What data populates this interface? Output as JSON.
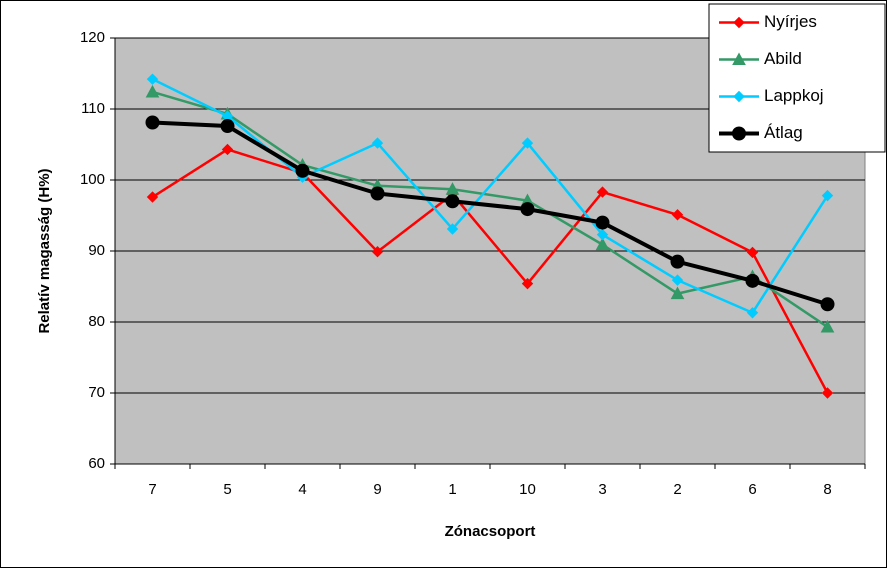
{
  "chart_data": {
    "type": "line",
    "x_label": "Zónacsoport",
    "y_label": "Relatív magasság (H%)",
    "categories": [
      "7",
      "5",
      "4",
      "9",
      "1",
      "10",
      "3",
      "2",
      "6",
      "8"
    ],
    "series": [
      {
        "name": "Nyírjes",
        "color": "#ff0000",
        "marker": "diamond",
        "line_width": 2.5,
        "values": [
          97.6,
          104.3,
          101,
          89.9,
          98,
          85.4,
          98.3,
          95.1,
          89.8,
          70
        ]
      },
      {
        "name": "Abild",
        "color": "#339966",
        "marker": "triangle",
        "line_width": 2.5,
        "values": [
          112.4,
          109.3,
          102.1,
          99.2,
          98.7,
          97.1,
          90.9,
          84,
          86.4,
          79.3
        ]
      },
      {
        "name": "Lappkoj",
        "color": "#00ccff",
        "marker": "diamond",
        "line_width": 2.5,
        "values": [
          114.2,
          109,
          100.4,
          105.2,
          93.1,
          105.2,
          92.3,
          85.9,
          81.3,
          97.8
        ]
      },
      {
        "name": "Átlag",
        "color": "#000000",
        "marker": "circle",
        "line_width": 4,
        "values": [
          108.1,
          107.6,
          101.3,
          98.1,
          97,
          95.9,
          94,
          88.5,
          85.8,
          82.5
        ]
      }
    ],
    "ylim": [
      60,
      120
    ],
    "yticks": [
      60,
      70,
      80,
      90,
      100,
      110,
      120
    ],
    "grid": true,
    "legend": "top-right",
    "plot_background": "#c0c0c0"
  }
}
